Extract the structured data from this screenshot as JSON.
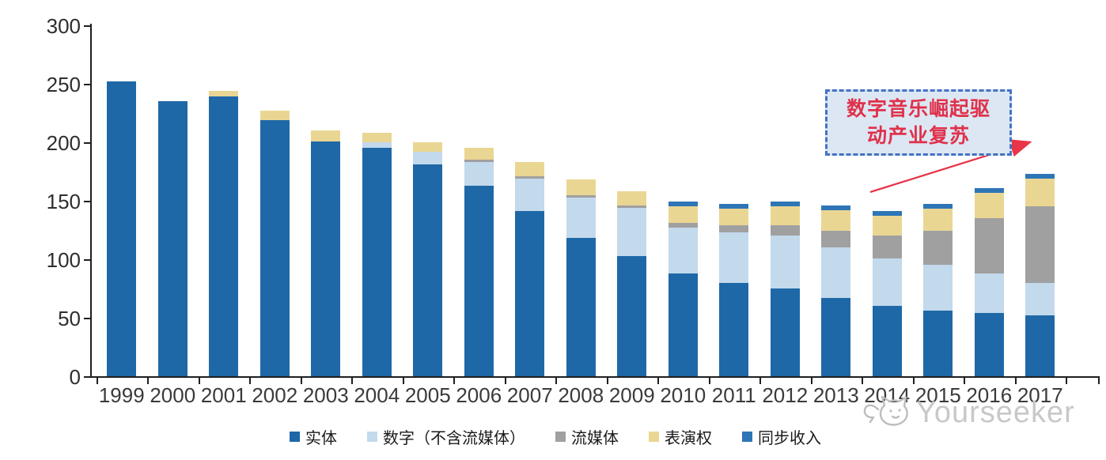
{
  "chart_data": {
    "type": "bar",
    "stacked": true,
    "categories": [
      "1999",
      "2000",
      "2001",
      "2002",
      "2003",
      "2004",
      "2005",
      "2006",
      "2007",
      "2008",
      "2009",
      "2010",
      "2011",
      "2012",
      "2013",
      "2014",
      "2015",
      "2016",
      "2017"
    ],
    "series": [
      {
        "name": "实体",
        "key": "physical",
        "color": "#1E68A7",
        "values": [
          252,
          235,
          239,
          219,
          201,
          195,
          181,
          163,
          141,
          118,
          103,
          88,
          80,
          75,
          67,
          60,
          56,
          54,
          52
        ]
      },
      {
        "name": "数字（不含流媒体）",
        "key": "digital-excl-streaming",
        "color": "#C3D9EC",
        "values": [
          0,
          0,
          0,
          0,
          0,
          5,
          11,
          20,
          28,
          35,
          41,
          39,
          43,
          45,
          43,
          41,
          39,
          34,
          28
        ]
      },
      {
        "name": "流媒体",
        "key": "streaming",
        "color": "#A0A0A0",
        "values": [
          0,
          0,
          0,
          0,
          0,
          0,
          0,
          2,
          2,
          2,
          2,
          4,
          6,
          9,
          14,
          19,
          29,
          47,
          65
        ]
      },
      {
        "name": "表演权",
        "key": "performance-rights",
        "color": "#EAD693",
        "values": [
          0,
          0,
          5,
          8,
          9,
          8,
          8,
          10,
          12,
          13,
          12,
          14,
          14,
          16,
          18,
          17,
          19,
          22,
          24
        ]
      },
      {
        "name": "同步收入",
        "key": "sync-revenue",
        "color": "#2E75B6",
        "values": [
          0,
          0,
          0,
          0,
          0,
          0,
          0,
          0,
          0,
          0,
          0,
          4,
          4,
          4,
          4,
          4,
          4,
          4,
          4
        ]
      }
    ],
    "ylim": [
      0,
      300
    ],
    "ytick_step": 50,
    "ytick_labels": [
      "0",
      "50",
      "100",
      "150",
      "200",
      "250",
      "300"
    ],
    "grid": false,
    "legend_position": "bottom"
  },
  "annotation": {
    "line1": "数字音乐崛起驱",
    "line2": "动产业复苏",
    "text_color": "#E0314B",
    "box_fill": "#DCE7F3",
    "border_color": "#4472C4",
    "arrow_color": "#E8354A"
  },
  "watermark": {
    "text": "Yourseeker"
  }
}
